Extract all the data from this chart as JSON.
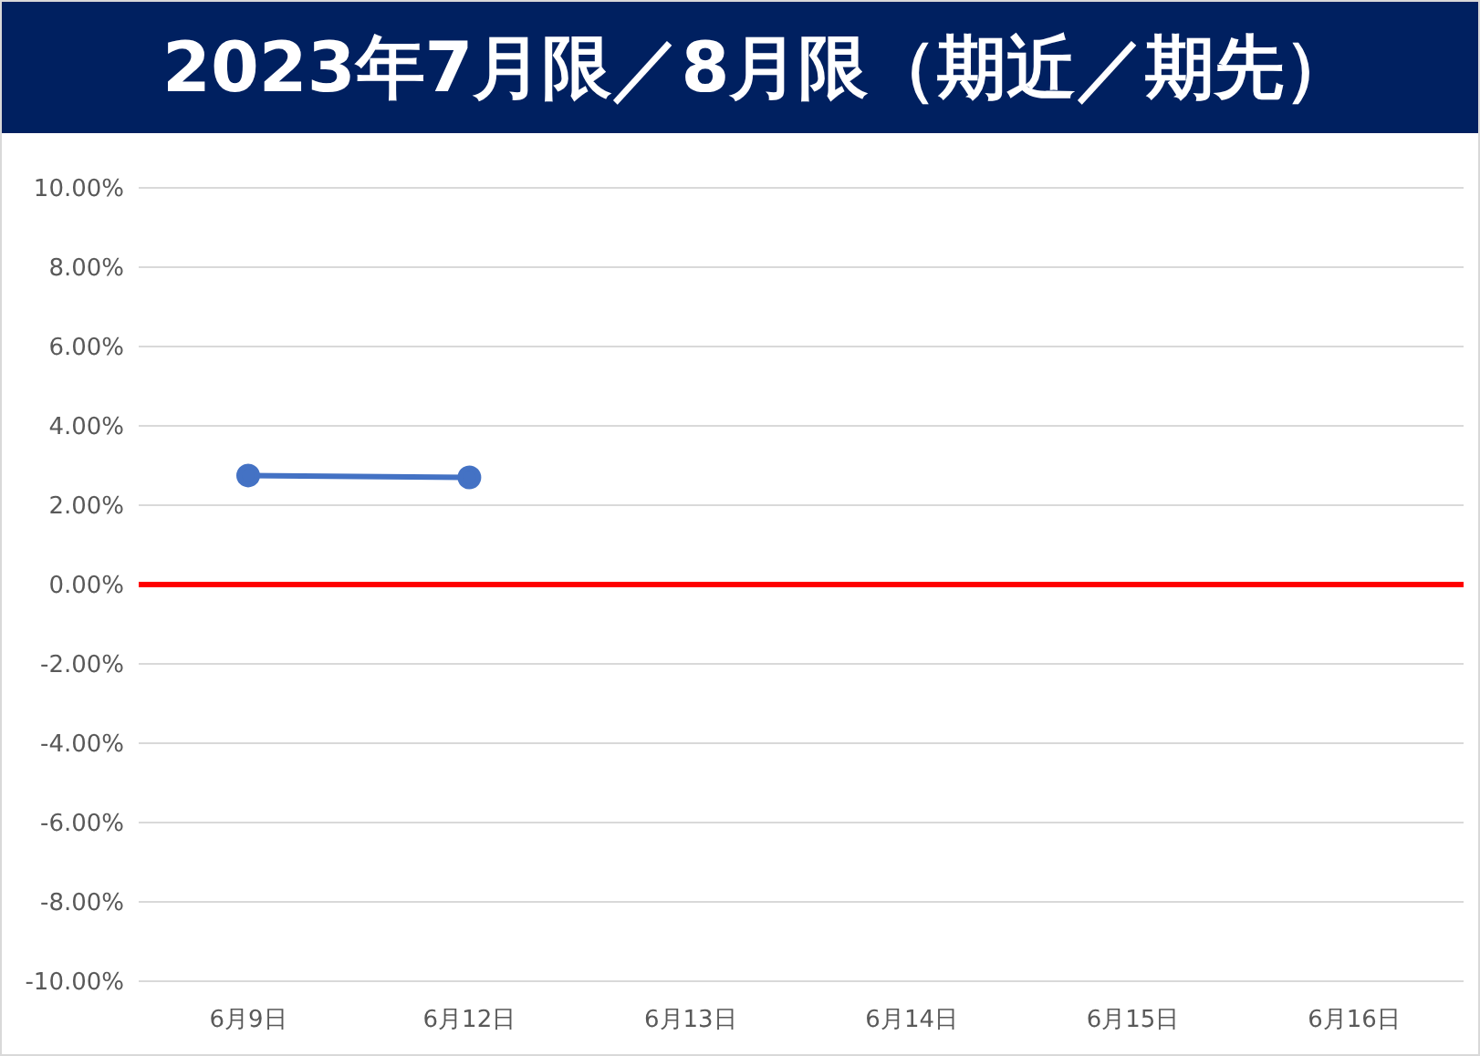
{
  "chart_data": {
    "type": "line",
    "title": "2023年7月限／8月限（期近／期先）",
    "categories": [
      "6月9日",
      "6月12日",
      "6月13日",
      "6月14日",
      "6月15日",
      "6月16日"
    ],
    "series": [
      {
        "color": "#4472c4",
        "values": [
          2.75,
          2.7,
          null,
          null,
          null,
          null
        ]
      }
    ],
    "ylim": [
      -10,
      10
    ],
    "yticks": [
      {
        "value": -10,
        "label": "-10.00%"
      },
      {
        "value": -8,
        "label": "-8.00%"
      },
      {
        "value": -6,
        "label": "-6.00%"
      },
      {
        "value": -4,
        "label": "-4.00%"
      },
      {
        "value": -2,
        "label": "-2.00%"
      },
      {
        "value": 0,
        "label": "0.00%"
      },
      {
        "value": 2,
        "label": "2.00%"
      },
      {
        "value": 4,
        "label": "4.00%"
      },
      {
        "value": 6,
        "label": "6.00%"
      },
      {
        "value": 8,
        "label": "8.00%"
      },
      {
        "value": 10,
        "label": "10.00%"
      }
    ],
    "ref_lines": [
      {
        "axis": "y",
        "value": 0,
        "color": "#ff0000"
      }
    ],
    "grid": "y",
    "marker": "circle",
    "line_style": "solid",
    "legend": false
  }
}
